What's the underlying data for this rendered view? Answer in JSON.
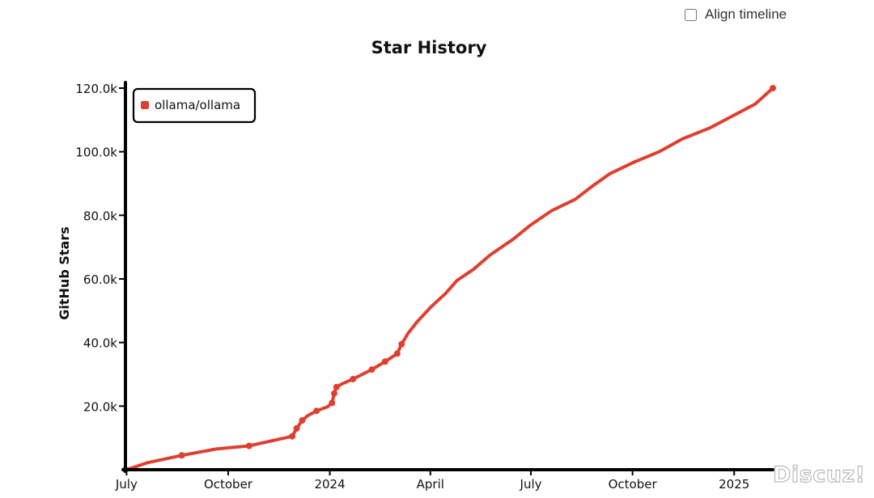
{
  "controls": {
    "align_timeline_label": "Align timeline",
    "align_timeline_checked": false
  },
  "watermark": "Discuz!",
  "chart_data": {
    "type": "line",
    "title": "Star History",
    "xlabel": "",
    "ylabel": "GitHub Stars",
    "x_ticks": [
      "July",
      "October",
      "2024",
      "April",
      "July",
      "October",
      "2025"
    ],
    "x_tick_dates": [
      "2023-07-01",
      "2023-10-01",
      "2024-01-01",
      "2024-04-01",
      "2024-07-01",
      "2024-10-01",
      "2025-01-01"
    ],
    "y_ticks": [
      "20.0k",
      "40.0k",
      "60.0k",
      "80.0k",
      "100.0k",
      "120.0k"
    ],
    "y_tick_values": [
      20000,
      40000,
      60000,
      80000,
      100000,
      120000
    ],
    "xlim": [
      "2023-06-30",
      "2025-02-05"
    ],
    "ylim": [
      0,
      120000
    ],
    "legend": "top-left",
    "colors": {
      "series": "#dd4031",
      "axis": "#000000"
    },
    "series": [
      {
        "name": "ollama/ollama",
        "points": [
          {
            "date": "2023-06-30",
            "stars": 0,
            "marker": true
          },
          {
            "date": "2023-07-08",
            "stars": 800,
            "marker": false
          },
          {
            "date": "2023-07-20",
            "stars": 2200,
            "marker": false
          },
          {
            "date": "2023-08-20",
            "stars": 4500,
            "marker": true
          },
          {
            "date": "2023-09-20",
            "stars": 6500,
            "marker": false
          },
          {
            "date": "2023-10-20",
            "stars": 7500,
            "marker": true
          },
          {
            "date": "2023-11-15",
            "stars": 9500,
            "marker": false
          },
          {
            "date": "2023-11-28",
            "stars": 10500,
            "marker": true
          },
          {
            "date": "2023-12-02",
            "stars": 13000,
            "marker": true
          },
          {
            "date": "2023-12-07",
            "stars": 15500,
            "marker": true
          },
          {
            "date": "2023-12-12",
            "stars": 17000,
            "marker": false
          },
          {
            "date": "2023-12-20",
            "stars": 18500,
            "marker": true
          },
          {
            "date": "2023-12-30",
            "stars": 19800,
            "marker": false
          },
          {
            "date": "2024-01-03",
            "stars": 21000,
            "marker": true
          },
          {
            "date": "2024-01-05",
            "stars": 24000,
            "marker": true
          },
          {
            "date": "2024-01-07",
            "stars": 26000,
            "marker": true
          },
          {
            "date": "2024-01-12",
            "stars": 27000,
            "marker": false
          },
          {
            "date": "2024-01-22",
            "stars": 28500,
            "marker": true
          },
          {
            "date": "2024-02-08",
            "stars": 31500,
            "marker": true
          },
          {
            "date": "2024-02-20",
            "stars": 34000,
            "marker": true
          },
          {
            "date": "2024-03-02",
            "stars": 36500,
            "marker": true
          },
          {
            "date": "2024-03-06",
            "stars": 39500,
            "marker": true
          },
          {
            "date": "2024-03-12",
            "stars": 43000,
            "marker": false
          },
          {
            "date": "2024-03-20",
            "stars": 46500,
            "marker": false
          },
          {
            "date": "2024-04-01",
            "stars": 51000,
            "marker": false
          },
          {
            "date": "2024-04-15",
            "stars": 55500,
            "marker": false
          },
          {
            "date": "2024-04-25",
            "stars": 59500,
            "marker": false
          },
          {
            "date": "2024-05-10",
            "stars": 63000,
            "marker": false
          },
          {
            "date": "2024-05-25",
            "stars": 67500,
            "marker": false
          },
          {
            "date": "2024-06-15",
            "stars": 72500,
            "marker": false
          },
          {
            "date": "2024-07-01",
            "stars": 77000,
            "marker": false
          },
          {
            "date": "2024-07-20",
            "stars": 81500,
            "marker": false
          },
          {
            "date": "2024-08-10",
            "stars": 85000,
            "marker": false
          },
          {
            "date": "2024-08-25",
            "stars": 89000,
            "marker": false
          },
          {
            "date": "2024-09-10",
            "stars": 93000,
            "marker": false
          },
          {
            "date": "2024-10-01",
            "stars": 96500,
            "marker": false
          },
          {
            "date": "2024-10-25",
            "stars": 100000,
            "marker": false
          },
          {
            "date": "2024-11-15",
            "stars": 104000,
            "marker": false
          },
          {
            "date": "2024-12-10",
            "stars": 107500,
            "marker": false
          },
          {
            "date": "2025-01-01",
            "stars": 111500,
            "marker": false
          },
          {
            "date": "2025-01-20",
            "stars": 115000,
            "marker": false
          },
          {
            "date": "2025-02-05",
            "stars": 120000,
            "marker": true
          }
        ]
      }
    ]
  }
}
